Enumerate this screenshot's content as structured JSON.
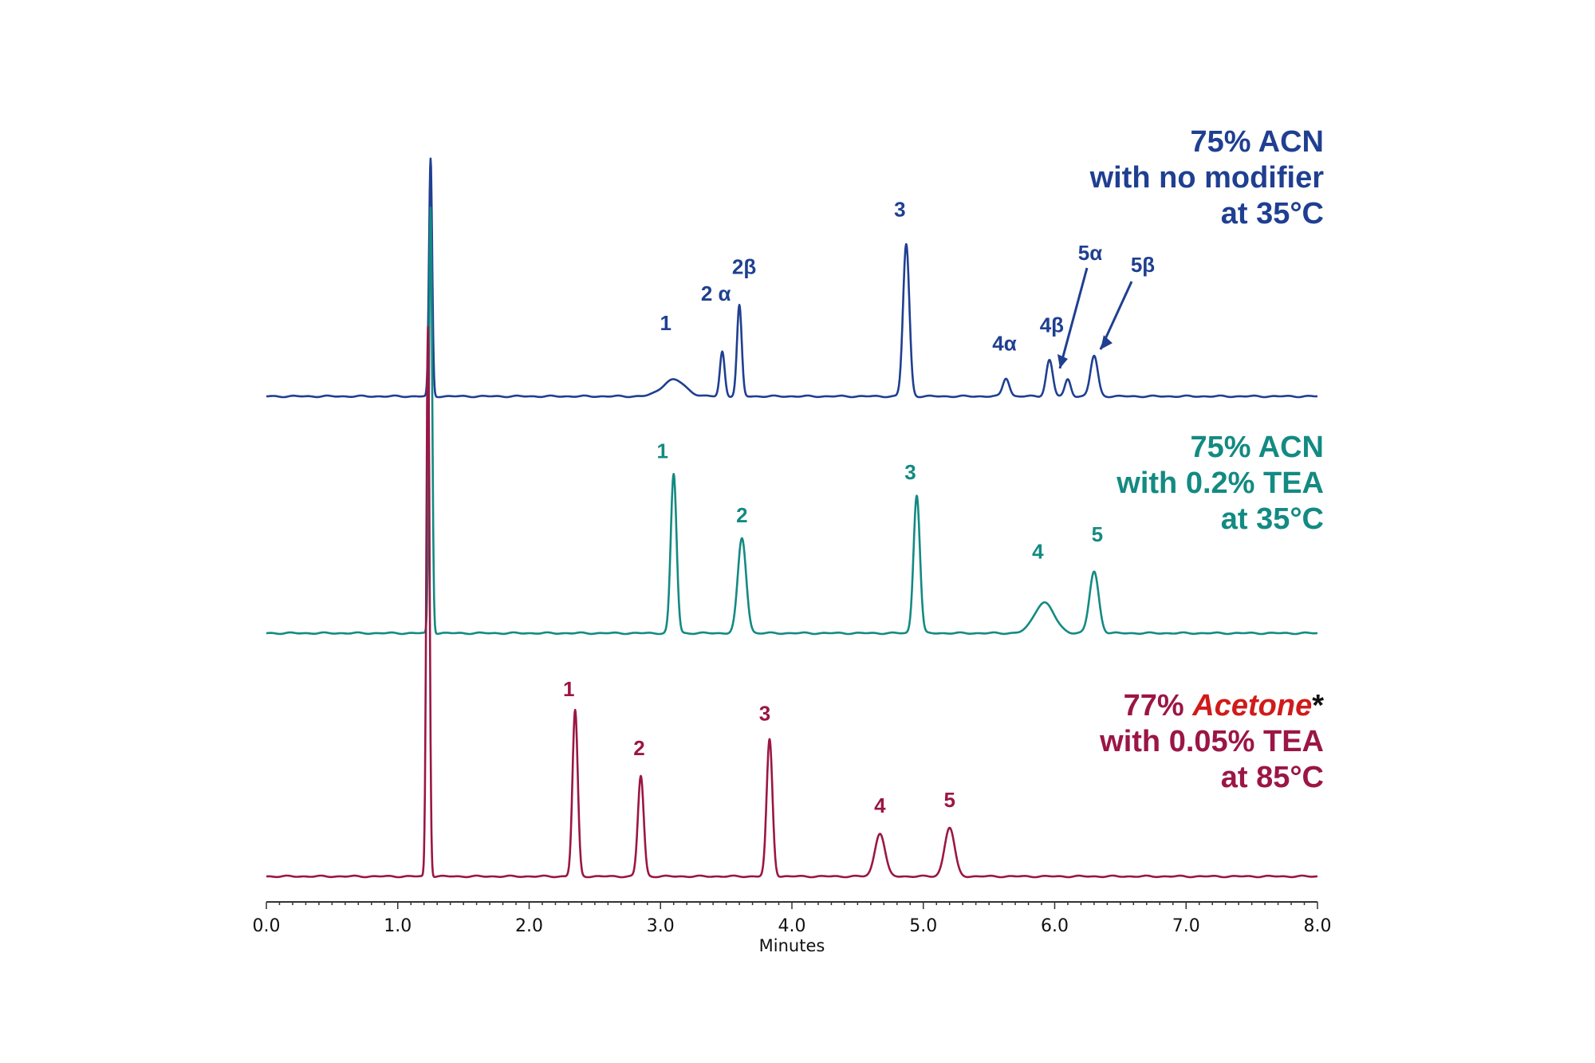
{
  "chart_data": {
    "type": "line",
    "xlabel": "Minutes",
    "xlim": [
      0.0,
      8.0
    ],
    "x_ticks": [
      "0.0",
      "1.0",
      "2.0",
      "3.0",
      "4.0",
      "5.0",
      "6.0",
      "7.0",
      "8.0"
    ],
    "series": [
      {
        "id": "acn_no_modifier",
        "color": "#1f3f91",
        "condition_lines": [
          "75% ACN",
          "with no modifier",
          "at 35°C"
        ],
        "void_peak": {
          "x": 1.25,
          "height": 1.7
        },
        "peaks": [
          {
            "label": "1",
            "x": 3.1,
            "height": 0.12
          },
          {
            "label": "2 α",
            "x": 3.47,
            "height": 0.32
          },
          {
            "label": "2β",
            "x": 3.6,
            "height": 0.65
          },
          {
            "label": "3",
            "x": 4.87,
            "height": 1.09
          },
          {
            "label": "4α",
            "x": 5.63,
            "height": 0.13
          },
          {
            "label": "4β",
            "x": 5.96,
            "height": 0.26
          },
          {
            "label": "5α",
            "x": 6.1,
            "height": 0.12
          },
          {
            "label": "5β",
            "x": 6.3,
            "height": 0.29
          }
        ]
      },
      {
        "id": "acn_tea",
        "color": "#138a82",
        "condition_lines": [
          "75% ACN",
          "with 0.2% TEA",
          "at 35°C"
        ],
        "void_peak": {
          "x": 1.25,
          "height": 3.05
        },
        "peaks": [
          {
            "label": "1",
            "x": 3.1,
            "height": 1.14
          },
          {
            "label": "2",
            "x": 3.62,
            "height": 0.68
          },
          {
            "label": "3",
            "x": 4.95,
            "height": 0.99
          },
          {
            "label": "4",
            "x": 5.92,
            "height": 0.22
          },
          {
            "label": "5",
            "x": 6.3,
            "height": 0.44
          }
        ]
      },
      {
        "id": "acetone_tea",
        "color": "#9b1645",
        "condition_lines": [
          "77% Acetone*",
          "with 0.05% TEA",
          "at 85°C"
        ],
        "condition_parts": {
          "pct": "77% ",
          "solvent": "Acetone",
          "star": "*"
        },
        "solvent_color": "#d11a1a",
        "void_peak": {
          "x": 1.23,
          "height": 3.94
        },
        "peaks": [
          {
            "label": "1",
            "x": 2.35,
            "height": 1.19
          },
          {
            "label": "2",
            "x": 2.85,
            "height": 0.72
          },
          {
            "label": "3",
            "x": 3.83,
            "height": 0.98
          },
          {
            "label": "4",
            "x": 4.67,
            "height": 0.31
          },
          {
            "label": "5",
            "x": 5.2,
            "height": 0.35
          }
        ]
      }
    ]
  }
}
